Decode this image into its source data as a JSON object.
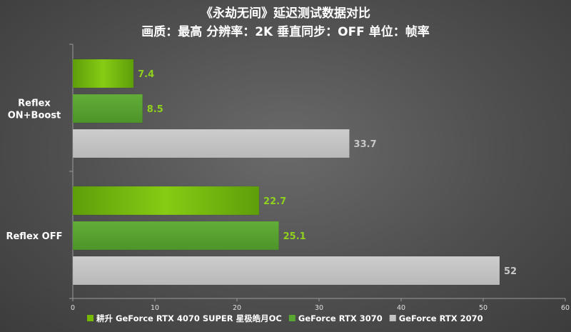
{
  "chart_data": {
    "type": "bar",
    "orientation": "horizontal",
    "title": "《永劫无间》延迟测试数据对比",
    "subtitle": "画质：最高 分辨率：2K 垂直同步：OFF 单位：帧率",
    "categories": [
      "Reflex\nON+Boost",
      "Reflex OFF"
    ],
    "series": [
      {
        "name": "耕升 GeForce RTX 4070 SUPER 星极皓月OC",
        "values": [
          7.4,
          22.7
        ],
        "color": "#76b900",
        "value_color": "#8fd11c"
      },
      {
        "name": "GeForce RTX 3070",
        "values": [
          8.5,
          25.1
        ],
        "color": "#5aa632",
        "value_color": "#8fd11c"
      },
      {
        "name": "GeForce RTX 2070",
        "values": [
          33.7,
          52
        ],
        "color": "#c4c4c4",
        "value_color": "#c8c8c8"
      }
    ],
    "x_ticks": [
      0,
      10,
      20,
      30,
      40,
      50,
      60
    ],
    "xlim": [
      0,
      60
    ],
    "grid": false,
    "legend_position": "bottom"
  }
}
